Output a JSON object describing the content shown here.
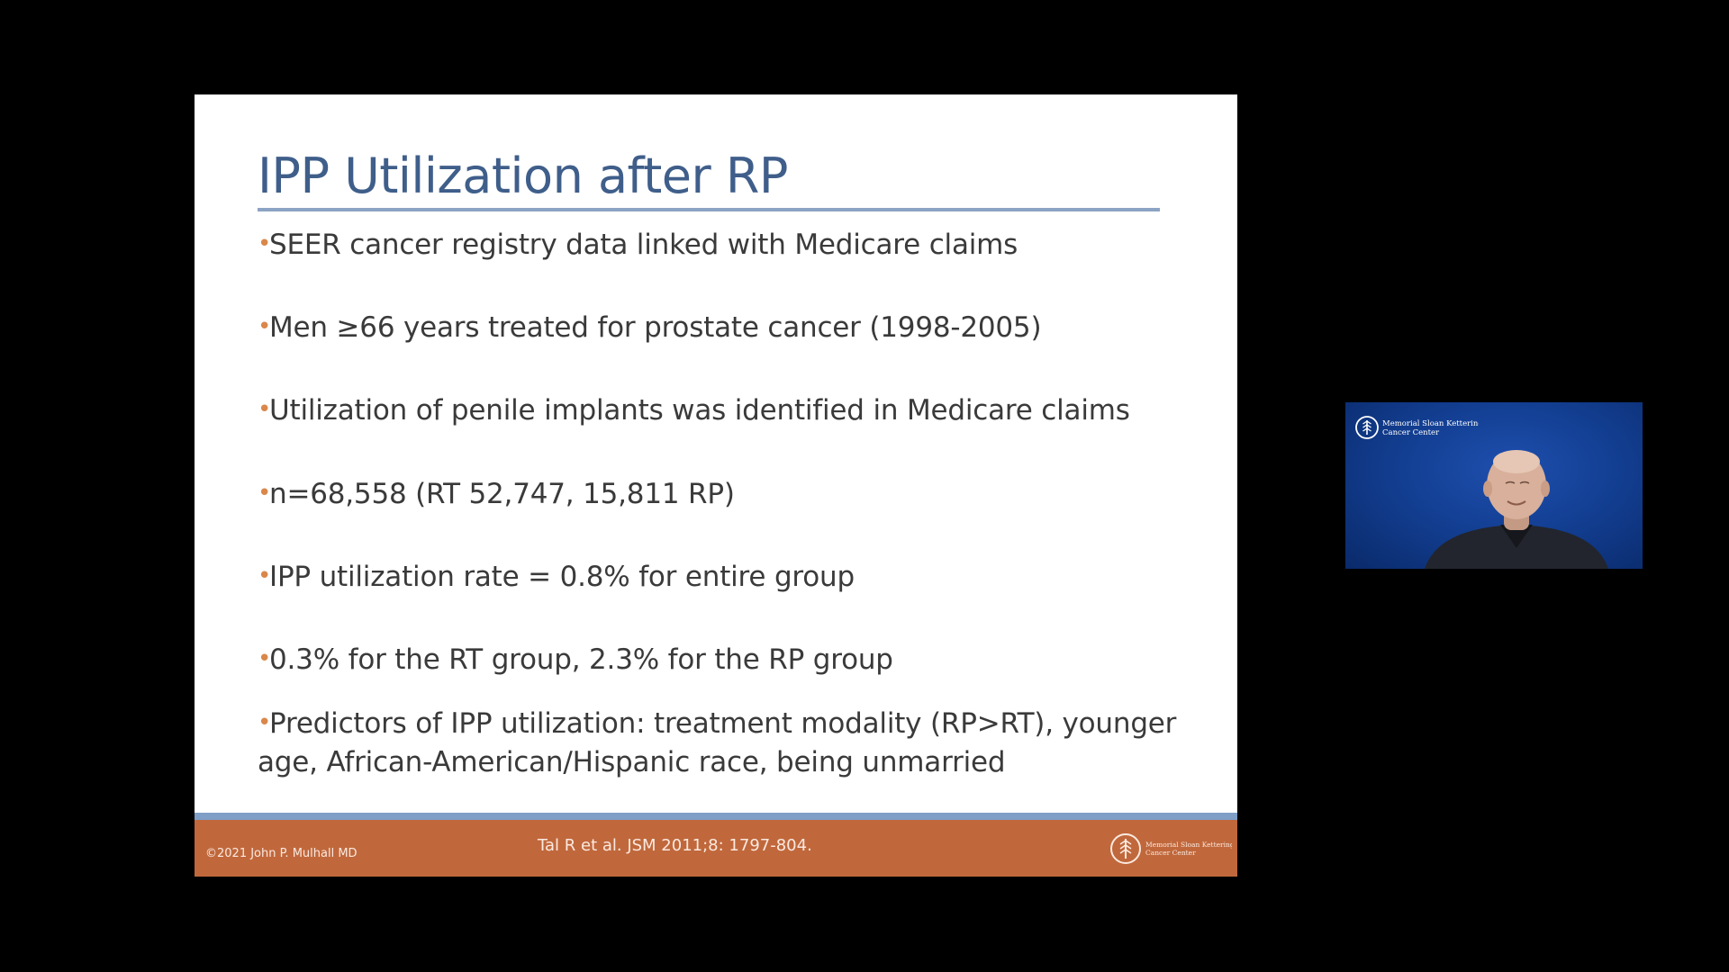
{
  "slide": {
    "title": "IPP Utilization after RP",
    "bullets": [
      {
        "text": "SEER cancer registry data linked with Medicare claims"
      },
      {
        "text": "Men ≥66 years treated for prostate cancer (1998-2005)"
      },
      {
        "text": "Utilization of penile implants was identified in Medicare claims"
      },
      {
        "text": "n=68,558 (RT 52,747, 15,811 RP)"
      },
      {
        "text": "IPP utilization rate = 0.8% for entire group"
      },
      {
        "text": "0.3% for the RT group, 2.3% for the RP group"
      },
      {
        "text": "Predictors of IPP utilization: treatment modality (RP>RT), younger\nage, African-American/Hispanic race, being unmarried"
      }
    ],
    "footer": {
      "copyright": "©2021 John P. Mulhall MD",
      "citation": "Tal R et al. JSM 2011;8: 1797-804.",
      "logo_line1": "Memorial Sloan Kettering",
      "logo_line2": "Cancer Center"
    },
    "colors": {
      "title": "#3f5e8a",
      "bullet_marker": "#d9874a",
      "footer_bar": "#c0683c",
      "footer_accent": "#7f9fc7"
    }
  },
  "webcam": {
    "logo_line1": "Memorial Sloan Kettering",
    "logo_line2": "Cancer Center",
    "background_color": "#133f93"
  },
  "icons": {
    "slide_logo": "msk-logo-icon",
    "webcam_logo": "msk-logo-icon",
    "bullet_marker": "bullet-dot-icon"
  }
}
